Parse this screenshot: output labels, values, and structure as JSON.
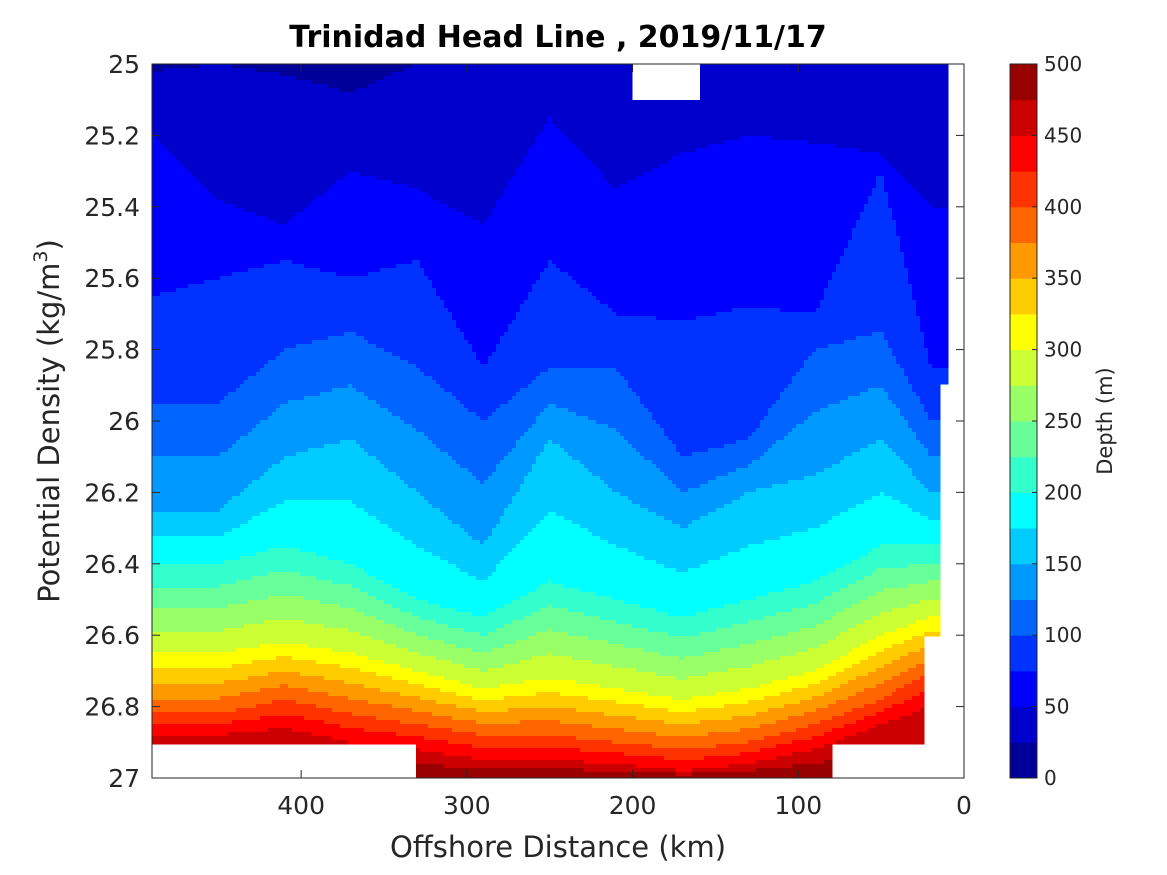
{
  "chart_data": {
    "type": "contour",
    "title": "Trinidad Head Line , 2019/11/17",
    "xlabel": "Offshore Distance (km)",
    "ylabel_main": "Potential Density (kg/m",
    "ylabel_sup": "3",
    "ylabel_close": ")",
    "colorbar_label": "Depth (m)",
    "x_reversed": true,
    "xlim": [
      490,
      0
    ],
    "ylim": [
      25,
      27
    ],
    "y_reversed": true,
    "x_ticks": [
      400,
      300,
      200,
      100,
      0
    ],
    "x_tick_labels": [
      "400",
      "300",
      "200",
      "100",
      "0"
    ],
    "y_ticks": [
      25,
      25.2,
      25.4,
      25.6,
      25.8,
      26,
      26.2,
      26.4,
      26.6,
      26.8,
      27
    ],
    "y_tick_labels": [
      "25",
      "25.2",
      "25.4",
      "25.6",
      "25.8",
      "26",
      "26.2",
      "26.4",
      "26.6",
      "26.8",
      "27"
    ],
    "colorbar_ticks": [
      0,
      50,
      100,
      150,
      200,
      250,
      300,
      350,
      400,
      450,
      500
    ],
    "colorbar_tick_labels": [
      "0",
      "50",
      "100",
      "150",
      "200",
      "250",
      "300",
      "350",
      "400",
      "450",
      "500"
    ],
    "colorbar_levels": 20,
    "colorbar_range": [
      0,
      500
    ],
    "colormap": "jet",
    "grid": false,
    "contour_levels_depth": [
      25,
      50,
      75,
      100,
      125,
      150,
      175,
      200,
      225,
      250,
      275,
      300,
      325,
      350,
      375,
      400,
      425,
      450,
      475
    ],
    "isopycnal_depth_profile": {
      "description_units": "distance km -> potential density at given depth",
      "x": [
        490,
        450,
        410,
        370,
        330,
        290,
        250,
        210,
        170,
        130,
        90,
        50,
        20
      ],
      "depth_25": [
        25.02,
        25.0,
        25.03,
        25.08,
        25.0,
        25.0,
        25.0,
        25.0,
        25.0,
        25.0,
        25.0,
        25.0,
        25.0
      ],
      "depth_50": [
        25.2,
        25.38,
        25.45,
        25.3,
        25.35,
        25.45,
        25.15,
        25.35,
        25.25,
        25.2,
        25.22,
        25.25,
        25.4
      ],
      "depth_75": [
        25.65,
        25.6,
        25.55,
        25.6,
        25.55,
        25.85,
        25.55,
        25.7,
        25.72,
        25.68,
        25.7,
        25.3,
        25.85
      ],
      "depth_100": [
        25.95,
        25.95,
        25.8,
        25.75,
        25.85,
        26.0,
        25.85,
        25.85,
        26.1,
        26.05,
        25.8,
        25.75,
        26.0
      ],
      "depth_150": [
        26.25,
        26.25,
        26.1,
        26.05,
        26.2,
        26.35,
        26.05,
        26.2,
        26.3,
        26.2,
        26.15,
        26.05,
        26.2
      ],
      "depth_200": [
        26.4,
        26.4,
        26.35,
        26.4,
        26.5,
        26.55,
        26.45,
        26.5,
        26.55,
        26.5,
        26.45,
        26.35,
        26.35
      ],
      "depth_300": [
        26.65,
        26.65,
        26.62,
        26.65,
        26.7,
        26.75,
        26.72,
        26.75,
        26.78,
        26.75,
        26.7,
        26.6,
        26.55
      ],
      "depth_400": [
        26.82,
        26.82,
        26.78,
        26.82,
        26.85,
        26.88,
        26.88,
        26.9,
        26.92,
        26.9,
        26.85,
        26.78,
        26.7
      ],
      "depth_450": [
        26.88,
        26.88,
        26.86,
        26.9,
        26.92,
        26.95,
        26.95,
        26.96,
        26.98,
        26.96,
        26.92,
        26.85,
        26.8
      ]
    },
    "data_bounds": {
      "x_span_km": [
        490,
        10
      ],
      "shallow_cutout": {
        "x_km": [
          200,
          160
        ],
        "density_top": 25.1
      },
      "deep_limit_density_offshore": 26.9,
      "deep_limit_density_mid": 27.0,
      "deep_limit_density_inshore": 26.9
    }
  }
}
